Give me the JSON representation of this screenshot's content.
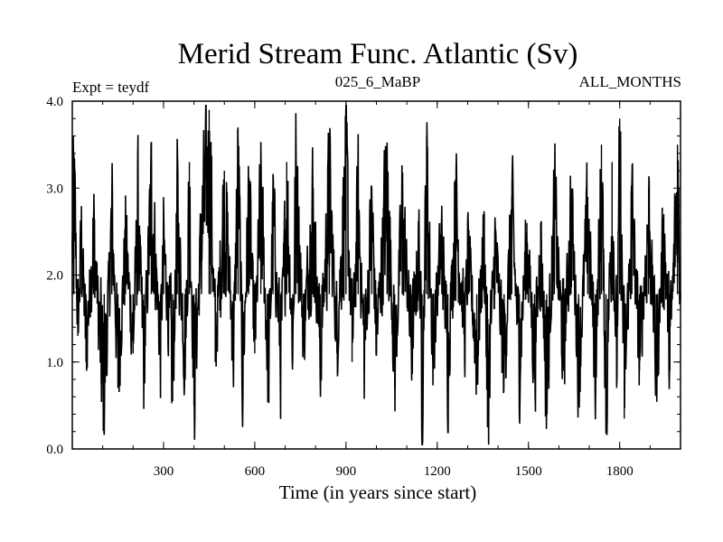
{
  "chart_data": {
    "type": "line",
    "title": "Merid Stream Func. Atlantic (Sv)",
    "annotations": {
      "left": "Expt = teydf",
      "center": "025_6_MaBP",
      "right": "ALL_MONTHS"
    },
    "xlabel": "Time (in years since start)",
    "ylabel": "",
    "xlim": [
      0,
      2000
    ],
    "ylim": [
      0.0,
      4.0
    ],
    "xticks": [
      300,
      600,
      900,
      1200,
      1500,
      1800
    ],
    "xtick_labels": [
      "300",
      "600",
      "900",
      "1200",
      "1500",
      "1800"
    ],
    "yticks": [
      0.0,
      1.0,
      2.0,
      3.0,
      4.0
    ],
    "ytick_labels": [
      "0.0",
      "1.0",
      "2.0",
      "3.0",
      "4.0"
    ],
    "grid": false,
    "series": [
      {
        "name": "Merid Stream Func. Atlantic",
        "color": "#000000",
        "baseline": 1.78,
        "points": [
          [
            0,
            2.5
          ],
          [
            5,
            3.4
          ],
          [
            18,
            1.3
          ],
          [
            30,
            2.6
          ],
          [
            45,
            1.0
          ],
          [
            70,
            2.7
          ],
          [
            95,
            0.75
          ],
          [
            105,
            0.4
          ],
          [
            130,
            2.9
          ],
          [
            150,
            0.7
          ],
          [
            175,
            2.5
          ],
          [
            200,
            1.1
          ],
          [
            215,
            3.0
          ],
          [
            235,
            0.8
          ],
          [
            260,
            3.3
          ],
          [
            290,
            1.0
          ],
          [
            300,
            2.5
          ],
          [
            330,
            0.55
          ],
          [
            345,
            3.0
          ],
          [
            370,
            0.9
          ],
          [
            385,
            3.3
          ],
          [
            400,
            0.5
          ],
          [
            425,
            2.7
          ],
          [
            450,
            3.9
          ],
          [
            455,
            3.4
          ],
          [
            470,
            1.0
          ],
          [
            500,
            3.2
          ],
          [
            530,
            1.0
          ],
          [
            545,
            3.7
          ],
          [
            560,
            0.6
          ],
          [
            580,
            3.1
          ],
          [
            600,
            1.1
          ],
          [
            620,
            3.2
          ],
          [
            645,
            0.6
          ],
          [
            660,
            2.9
          ],
          [
            685,
            0.9
          ],
          [
            705,
            3.3
          ],
          [
            725,
            1.0
          ],
          [
            735,
            3.6
          ],
          [
            760,
            1.2
          ],
          [
            790,
            3.1
          ],
          [
            815,
            0.9
          ],
          [
            845,
            3.3
          ],
          [
            870,
            1.1
          ],
          [
            900,
            3.7
          ],
          [
            920,
            1.0
          ],
          [
            940,
            3.1
          ],
          [
            960,
            0.9
          ],
          [
            985,
            3.0
          ],
          [
            1000,
            1.1
          ],
          [
            1035,
            3.5
          ],
          [
            1060,
            0.7
          ],
          [
            1085,
            3.0
          ],
          [
            1115,
            1.0
          ],
          [
            1140,
            2.5
          ],
          [
            1150,
            0.3
          ],
          [
            1165,
            3.6
          ],
          [
            1185,
            1.0
          ],
          [
            1215,
            2.6
          ],
          [
            1235,
            0.8
          ],
          [
            1260,
            3.1
          ],
          [
            1290,
            1.2
          ],
          [
            1300,
            2.4
          ],
          [
            1330,
            0.9
          ],
          [
            1355,
            2.7
          ],
          [
            1365,
            0.25
          ],
          [
            1390,
            2.5
          ],
          [
            1420,
            0.8
          ],
          [
            1445,
            2.9
          ],
          [
            1470,
            0.9
          ],
          [
            1495,
            2.6
          ],
          [
            1520,
            0.8
          ],
          [
            1540,
            2.6
          ],
          [
            1560,
            0.4
          ],
          [
            1585,
            3.0
          ],
          [
            1615,
            0.9
          ],
          [
            1640,
            3.0
          ],
          [
            1665,
            0.8
          ],
          [
            1695,
            2.9
          ],
          [
            1720,
            0.8
          ],
          [
            1740,
            3.5
          ],
          [
            1755,
            0.25
          ],
          [
            1775,
            3.3
          ],
          [
            1790,
            0.7
          ],
          [
            1800,
            3.8
          ],
          [
            1815,
            0.35
          ],
          [
            1840,
            3.0
          ],
          [
            1865,
            0.9
          ],
          [
            1895,
            3.0
          ],
          [
            1920,
            0.7
          ],
          [
            1945,
            2.7
          ],
          [
            1965,
            0.9
          ],
          [
            1990,
            3.5
          ],
          [
            2000,
            1.8
          ]
        ]
      }
    ]
  }
}
